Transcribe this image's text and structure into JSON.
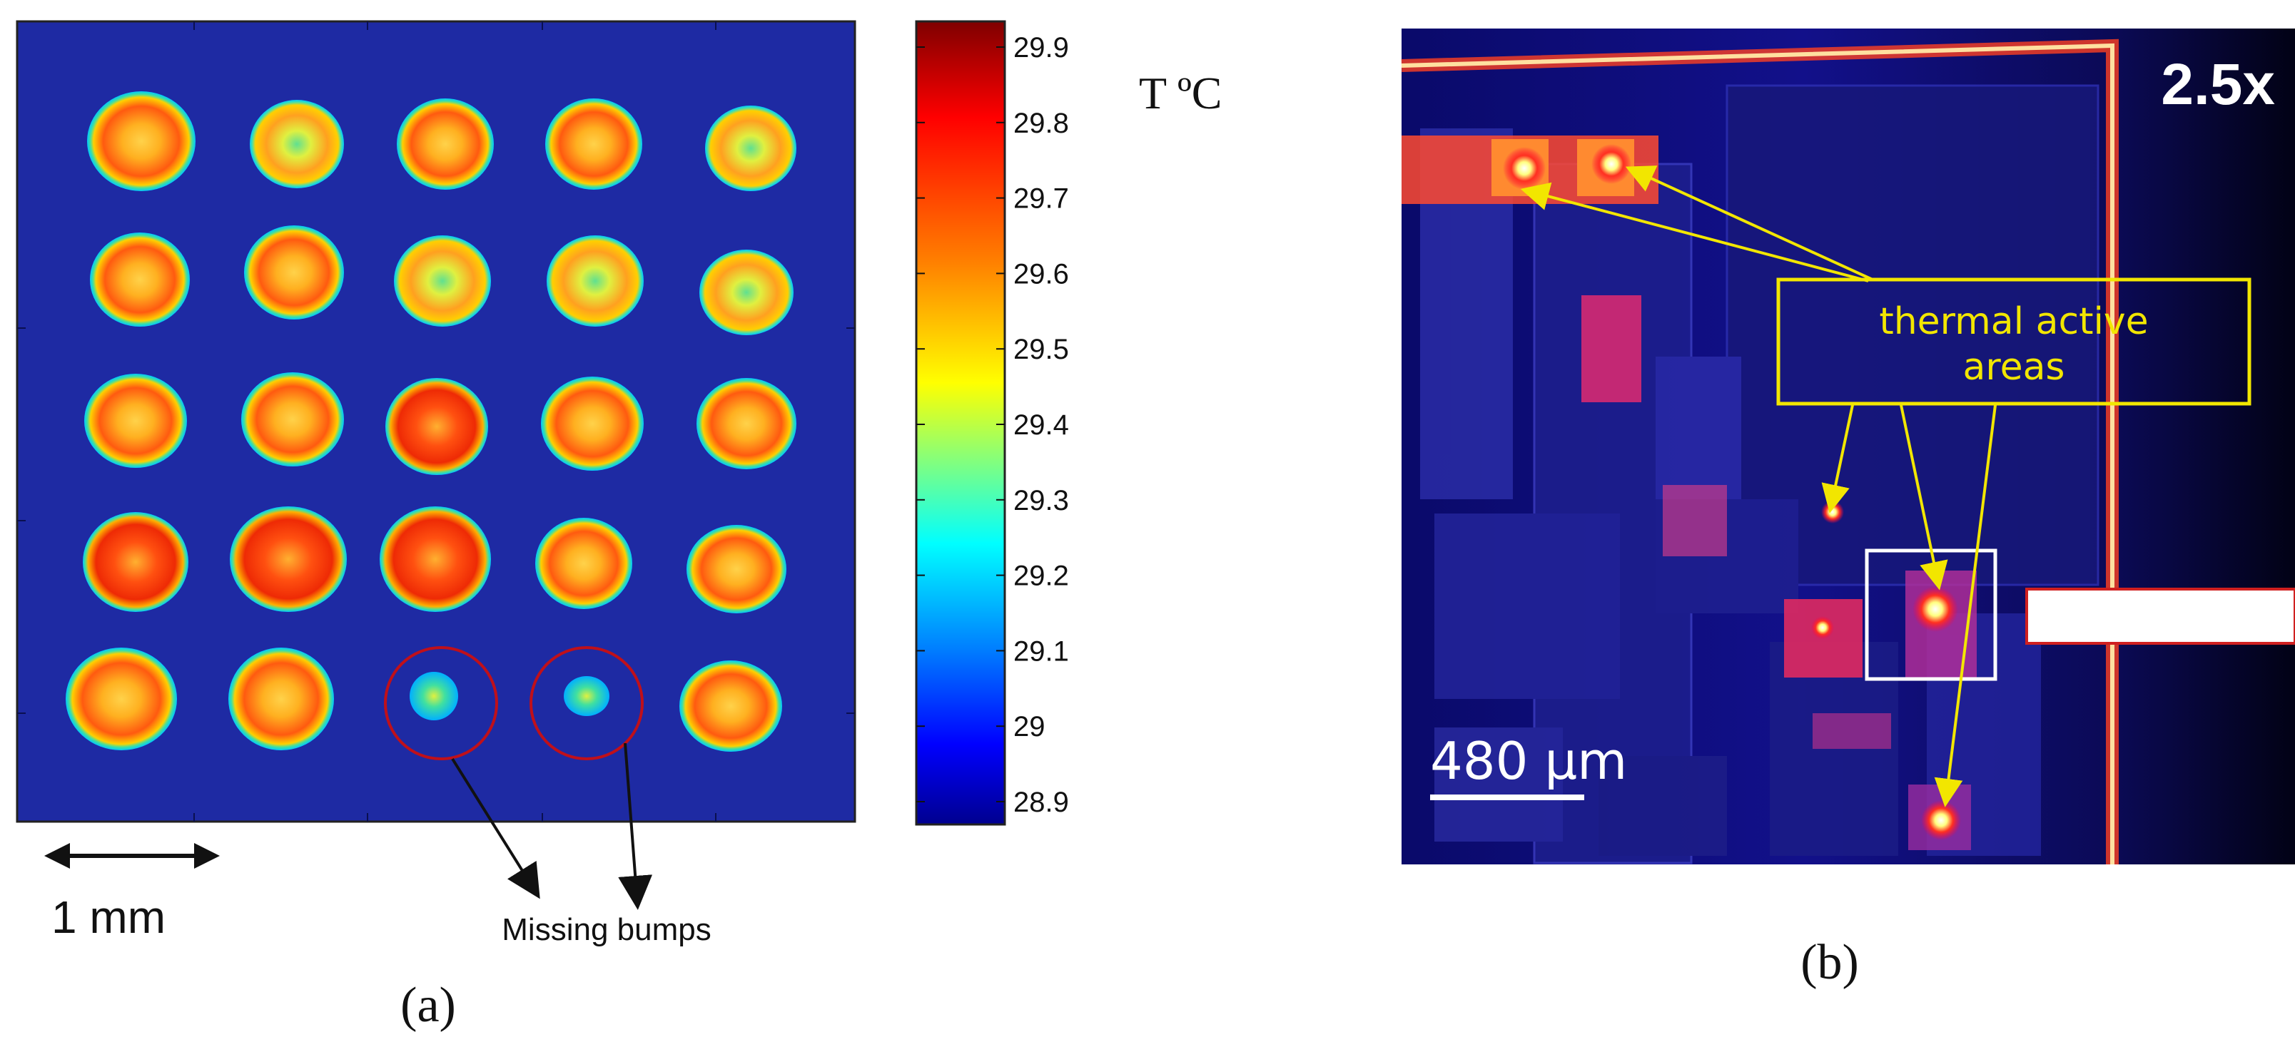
{
  "panel_a": {
    "caption": "(a)",
    "colorbar": {
      "unit_label": "T ºC",
      "ticks": [
        "29.9",
        "29.8",
        "29.7",
        "29.6",
        "29.5",
        "29.4",
        "29.3",
        "29.2",
        "29.1",
        "29",
        "28.9"
      ],
      "colors": [
        "#7f0000",
        "#ff0000",
        "#ff8000",
        "#ffff00",
        "#80ff80",
        "#00ffff",
        "#0080ff",
        "#0000ff",
        "#00008f"
      ]
    },
    "background_color": "#1e2aa3",
    "grid": {
      "rows": 5,
      "cols": 5,
      "missing": [
        [
          4,
          2
        ],
        [
          4,
          3
        ]
      ]
    },
    "scale_bar_label": "1 mm",
    "annotation": "Missing bumps"
  },
  "panel_b": {
    "caption": "(b)",
    "zoom_label": "2.5x",
    "scale_bar_label": "480 µm",
    "callout": [
      "thermal active",
      "areas"
    ],
    "accent_color": "#f2e600"
  }
}
